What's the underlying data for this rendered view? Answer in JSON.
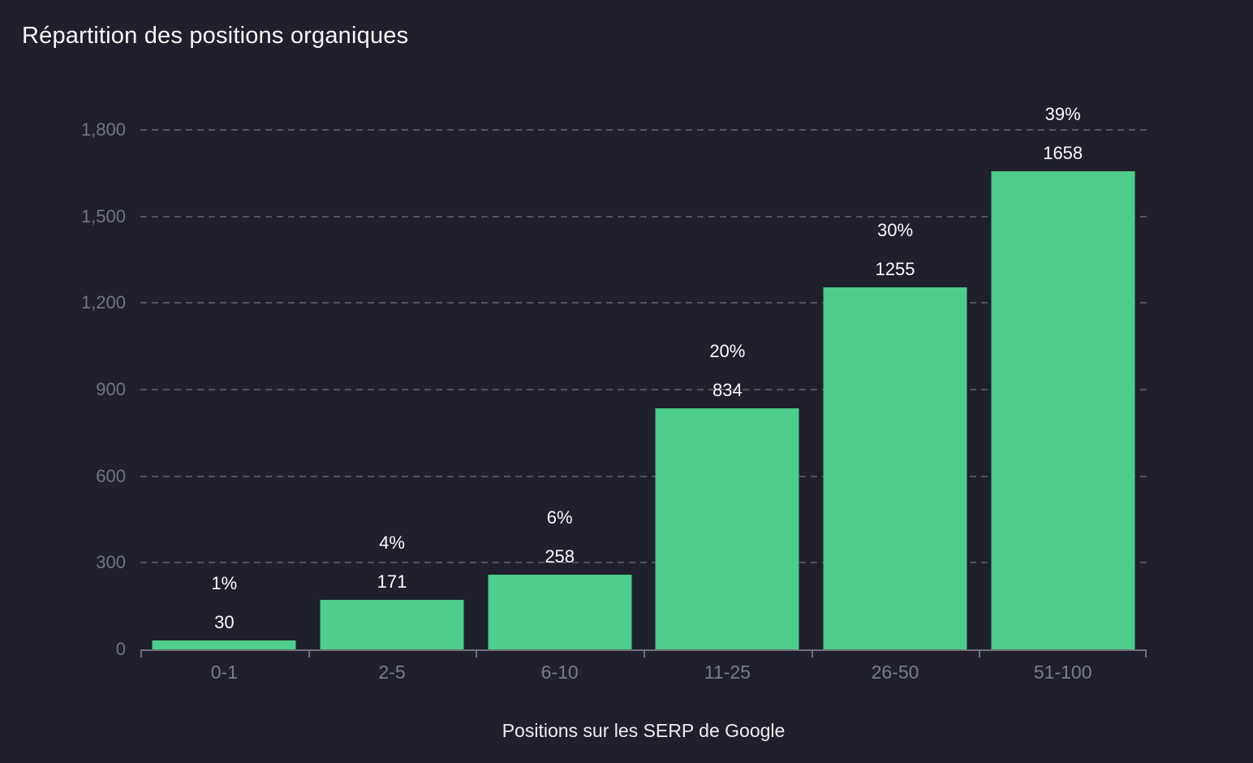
{
  "title": "Répartition des positions organiques",
  "colors": {
    "background": "#1f202c",
    "bar": "#4dcc8b",
    "gridline": "#51525e",
    "axis_line": "#70707b",
    "axis_label": "#73747f",
    "value_label": "#fbfbfc",
    "title_text": "#f7f7f8"
  },
  "chart_data": {
    "type": "bar",
    "title": "Répartition des positions organiques",
    "xlabel": "Positions sur les SERP de Google",
    "ylabel": "",
    "categories": [
      "0-1",
      "2-5",
      "6-10",
      "11-25",
      "26-50",
      "51-100"
    ],
    "values": [
      30,
      171,
      258,
      834,
      1255,
      1658
    ],
    "percent_labels": [
      "1%",
      "4%",
      "6%",
      "20%",
      "30%",
      "39%"
    ],
    "ylim": [
      0,
      1800
    ],
    "yticks": [
      0,
      300,
      600,
      900,
      1200,
      1500,
      1800
    ],
    "ytick_labels": [
      "0",
      "300",
      "600",
      "900",
      "1,200",
      "1,500",
      "1,800"
    ],
    "grid": "horizontal-dashed",
    "legend": "none",
    "bar_color": "#4dcc8b"
  }
}
